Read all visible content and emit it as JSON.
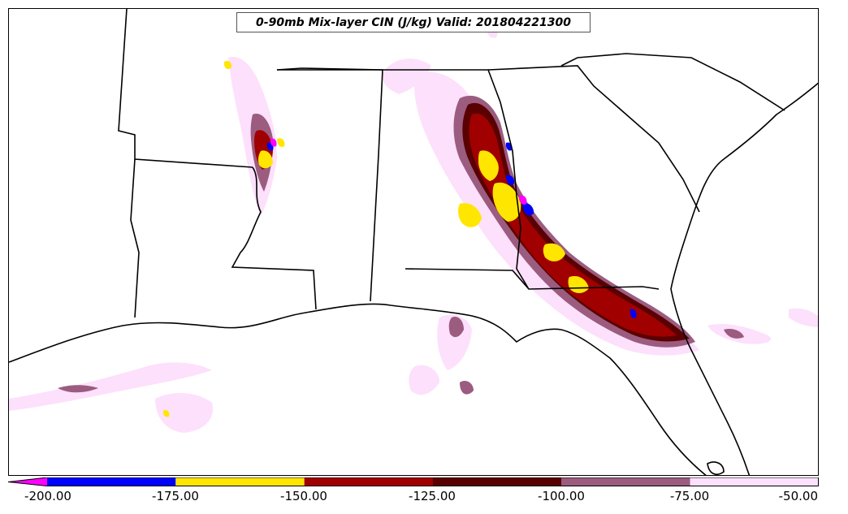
{
  "title": "0-90mb Mix-layer CIN (J/kg) Valid: 201804221300",
  "colorbar": {
    "ticks": [
      "-200.00",
      "-175.00",
      "-150.00",
      "-125.00",
      "-100.00",
      "-75.00",
      "-50.00"
    ],
    "bins": [
      {
        "from": -225,
        "to": -200,
        "color": "#ff00ff"
      },
      {
        "from": -200,
        "to": -175,
        "color": "#0000ff"
      },
      {
        "from": -175,
        "to": -150,
        "color": "#ffe600"
      },
      {
        "from": -150,
        "to": -125,
        "color": "#a00000"
      },
      {
        "from": -125,
        "to": -100,
        "color": "#5a0000"
      },
      {
        "from": -100,
        "to": -75,
        "color": "#9b5c80"
      },
      {
        "from": -75,
        "to": -50,
        "color": "#fde0fb"
      }
    ],
    "extend": "min"
  },
  "colors": {
    "boundary": "#000000",
    "background": "#ffffff"
  }
}
